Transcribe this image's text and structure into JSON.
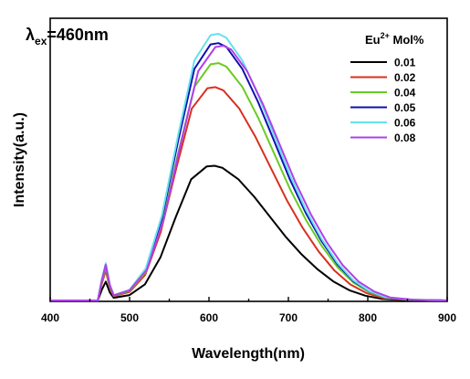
{
  "chart_data": {
    "type": "line",
    "excitation_symbol": "λ",
    "excitation_sub": "ex",
    "excitation_value": "=460nm",
    "xlabel": "Wavelength(nm)",
    "ylabel": "Intensity(a.u.)",
    "xlim": [
      400,
      900
    ],
    "ylim": [
      0,
      1.0
    ],
    "x_ticks": [
      400,
      500,
      600,
      700,
      800,
      900
    ],
    "x_tick_labels": [
      "400",
      "500",
      "600",
      "700",
      "800",
      "900"
    ],
    "legend": {
      "title_pre": "Eu",
      "title_sup": "2+",
      "title_post": " Mol%",
      "position": "top-right"
    },
    "shape": {
      "x": [
        400,
        460,
        465,
        470,
        475,
        480,
        500,
        520,
        540,
        560,
        580,
        600,
        610,
        620,
        640,
        660,
        680,
        700,
        720,
        740,
        760,
        780,
        800,
        820,
        850,
        880,
        900
      ],
      "y": [
        0,
        0,
        0.08,
        0.14,
        0.06,
        0.02,
        0.04,
        0.12,
        0.32,
        0.62,
        0.9,
        0.995,
        1.0,
        0.985,
        0.9,
        0.77,
        0.62,
        0.47,
        0.34,
        0.23,
        0.14,
        0.075,
        0.035,
        0.012,
        0.003,
        0.001,
        0
      ]
    },
    "series": [
      {
        "name": "0.01",
        "color": "#000000",
        "peak": 0.505,
        "peak_x": 607
      },
      {
        "name": "0.02",
        "color": "#d83020",
        "peak": 0.8,
        "peak_x": 608
      },
      {
        "name": "0.04",
        "color": "#66cc22",
        "peak": 0.89,
        "peak_x": 612
      },
      {
        "name": "0.05",
        "color": "#1010b0",
        "peak": 0.965,
        "peak_x": 612
      },
      {
        "name": "0.06",
        "color": "#66e0ee",
        "peak": 1.0,
        "peak_x": 612
      },
      {
        "name": "0.08",
        "color": "#b040e8",
        "peak": 0.955,
        "peak_x": 618
      }
    ]
  }
}
